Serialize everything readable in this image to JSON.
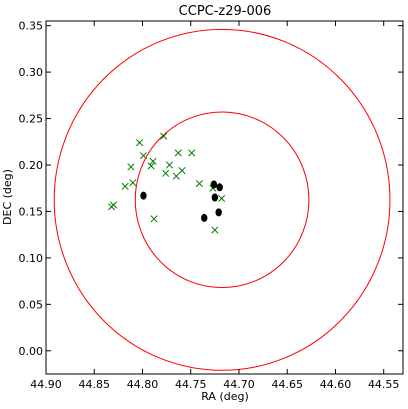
{
  "chart_data": {
    "type": "scatter",
    "title": "CCPC-z29-006",
    "xlabel": "RA (deg)",
    "ylabel": "DEC (deg)",
    "xlim": [
      44.9,
      44.53
    ],
    "ylim": [
      -0.025,
      0.355
    ],
    "x_inverted": true,
    "grid": false,
    "x_ticks": [
      "44.90",
      "44.85",
      "44.80",
      "44.75",
      "44.70",
      "44.65",
      "44.60",
      "44.55"
    ],
    "y_ticks": [
      "0.00",
      "0.05",
      "0.10",
      "0.15",
      "0.20",
      "0.25",
      "0.30",
      "0.35"
    ],
    "colors": {
      "circles": "#ff0000",
      "crosses": "#008000",
      "dots": "#000000"
    },
    "circles": [
      {
        "center": [
          44.7175,
          0.1625
        ],
        "radius_ra": 0.09,
        "radius_dec": 0.0945
      },
      {
        "center": [
          44.7175,
          0.1625
        ],
        "radius_ra": 0.174,
        "radius_dec": 0.1835
      }
    ],
    "series": [
      {
        "marker": "x",
        "points": [
          [
            44.832,
            0.155
          ],
          [
            44.83,
            0.157
          ],
          [
            44.818,
            0.177
          ],
          [
            44.812,
            0.198
          ],
          [
            44.81,
            0.181
          ],
          [
            44.803,
            0.224
          ],
          [
            44.799,
            0.21
          ],
          [
            44.791,
            0.199
          ],
          [
            44.789,
            0.204
          ],
          [
            44.788,
            0.142
          ],
          [
            44.778,
            0.231
          ],
          [
            44.776,
            0.191
          ],
          [
            44.772,
            0.2
          ],
          [
            44.765,
            0.188
          ],
          [
            44.763,
            0.213
          ],
          [
            44.759,
            0.194
          ],
          [
            44.749,
            0.213
          ],
          [
            44.741,
            0.18
          ],
          [
            44.727,
            0.175
          ],
          [
            44.718,
            0.164
          ],
          [
            44.725,
            0.13
          ]
        ]
      },
      {
        "marker": "o",
        "points": [
          [
            44.799,
            0.167
          ],
          [
            44.736,
            0.143
          ],
          [
            44.726,
            0.179
          ],
          [
            44.725,
            0.165
          ],
          [
            44.72,
            0.176
          ],
          [
            44.721,
            0.149
          ]
        ]
      }
    ]
  }
}
